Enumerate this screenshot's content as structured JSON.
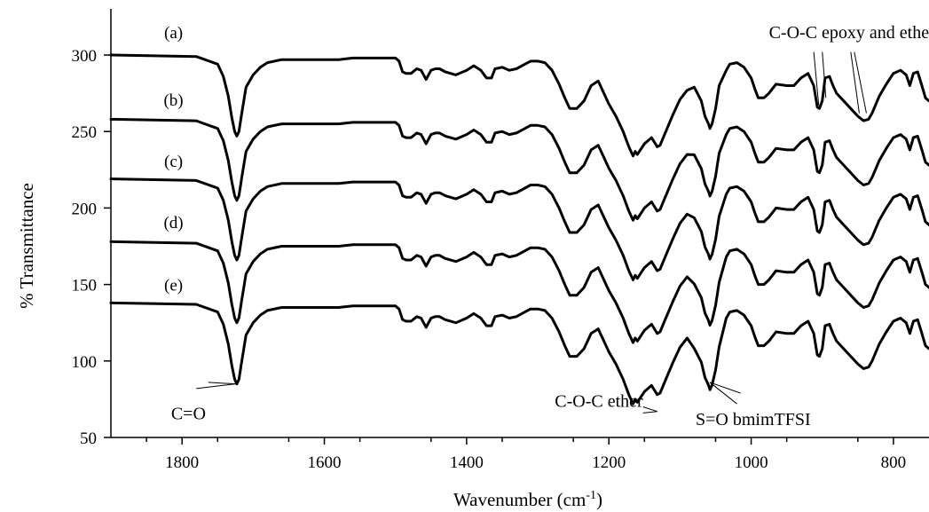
{
  "chart_data": {
    "type": "line",
    "title": "",
    "xlabel": "Wavenumber (cm",
    "xlabel_sup": "-1",
    "xlabel_close": ")",
    "ylabel": "% Transmittance",
    "xlim": [
      1900,
      750
    ],
    "ylim": [
      50,
      325
    ],
    "x_reversed": true,
    "xticks": [
      1800,
      1600,
      1400,
      1200,
      1000,
      800
    ],
    "yticks": [
      50,
      100,
      150,
      200,
      250,
      300
    ],
    "grid": false,
    "base_series": "a",
    "base_x": [
      1900,
      1780,
      1750,
      1742,
      1735,
      1730,
      1726,
      1723,
      1720,
      1716,
      1710,
      1700,
      1690,
      1680,
      1660,
      1640,
      1620,
      1600,
      1580,
      1560,
      1540,
      1520,
      1500,
      1495,
      1490,
      1485,
      1478,
      1470,
      1464,
      1457,
      1450,
      1444,
      1438,
      1430,
      1415,
      1400,
      1390,
      1380,
      1372,
      1365,
      1360,
      1350,
      1340,
      1330,
      1318,
      1310,
      1300,
      1290,
      1280,
      1270,
      1262,
      1255,
      1245,
      1235,
      1225,
      1215,
      1210,
      1200,
      1190,
      1180,
      1172,
      1166,
      1163,
      1160,
      1150,
      1140,
      1132,
      1128,
      1120,
      1110,
      1100,
      1090,
      1080,
      1070,
      1065,
      1060,
      1058,
      1055,
      1050,
      1045,
      1035,
      1030,
      1020,
      1010,
      1000,
      995,
      990,
      982,
      975,
      965,
      950,
      940,
      930,
      920,
      912,
      907,
      904,
      900,
      896,
      890,
      885,
      880,
      870,
      860,
      850,
      842,
      835,
      830,
      820,
      810,
      800,
      790,
      782,
      777,
      772,
      766,
      760,
      755,
      750
    ],
    "base_y": [
      300,
      299,
      294,
      286,
      273,
      259,
      250,
      247,
      250,
      262,
      279,
      287,
      292,
      295,
      297,
      297,
      297,
      297,
      297,
      298,
      298,
      298,
      298,
      296,
      289,
      288,
      288,
      291,
      290,
      284,
      290,
      291,
      291,
      289,
      287,
      290,
      293,
      290,
      285,
      285,
      291,
      292,
      290,
      291,
      294,
      296,
      296,
      295,
      290,
      281,
      272,
      265,
      265,
      270,
      280,
      283,
      278,
      268,
      260,
      250,
      240,
      234,
      237,
      235,
      242,
      246,
      240,
      241,
      250,
      261,
      271,
      277,
      279,
      270,
      260,
      255,
      252,
      255,
      265,
      280,
      290,
      294,
      295,
      292,
      285,
      278,
      272,
      272,
      275,
      281,
      280,
      280,
      285,
      288,
      280,
      266,
      265,
      270,
      285,
      286,
      280,
      275,
      270,
      265,
      260,
      257,
      258,
      262,
      273,
      281,
      288,
      290,
      287,
      280,
      288,
      289,
      280,
      272,
      270
    ],
    "series": [
      {
        "name": "(a)",
        "offset": 0,
        "label_x": 1812,
        "label_y": 311
      },
      {
        "name": "(b)",
        "offset": -42,
        "label_x": 1812,
        "label_y": 267
      },
      {
        "name": "(c)",
        "offset": -81,
        "label_x": 1812,
        "label_y": 227
      },
      {
        "name": "(d)",
        "offset": -122,
        "label_x": 1812,
        "label_y": 187
      },
      {
        "name": "(e)",
        "offset": -162,
        "label_x": 1812,
        "label_y": 146
      }
    ],
    "annotations": [
      {
        "id": "co",
        "text": "C=O",
        "text_x": 1791,
        "text_y": 62,
        "targets": [
          [
            1725,
            85
          ]
        ],
        "from": [
          [
            1763,
            86
          ],
          [
            1780,
            82
          ]
        ]
      },
      {
        "id": "coc-ether",
        "text": "C-O-C ether",
        "text_x": 1214,
        "text_y": 70,
        "targets": [
          [
            1132,
            67
          ]
        ],
        "from": [
          [
            1152,
            70
          ],
          [
            1152,
            66
          ]
        ]
      },
      {
        "id": "so",
        "text": "S=O bmimTFSI",
        "text_x": 1078,
        "text_y": 58,
        "targets": [
          [
            1058,
            86
          ]
        ],
        "from": [
          [
            1020,
            72
          ],
          [
            1015,
            79
          ]
        ]
      },
      {
        "id": "coc-epoxy",
        "text": "C-O-C epoxy and ether",
        "text_x": 975,
        "text_y": 311,
        "targets": [
          [
            905,
            267
          ],
          [
            895,
            272
          ],
          [
            848,
            262
          ],
          [
            838,
            262
          ]
        ],
        "from": [
          [
            912,
            302
          ],
          [
            900,
            302
          ],
          [
            860,
            302
          ],
          [
            855,
            302
          ]
        ]
      }
    ]
  }
}
